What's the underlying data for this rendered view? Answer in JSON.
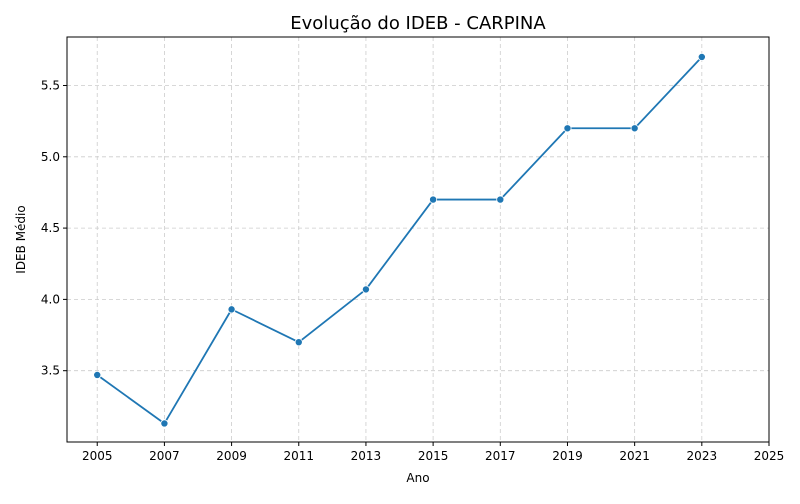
{
  "chart_data": {
    "type": "line",
    "title": "Evolução do IDEB - CARPINA",
    "xlabel": "Ano",
    "ylabel": "IDEB Médio",
    "x": [
      2005,
      2007,
      2009,
      2011,
      2013,
      2015,
      2017,
      2019,
      2021,
      2023
    ],
    "series": [
      {
        "values": [
          3.47,
          3.13,
          3.93,
          3.7,
          4.07,
          4.7,
          4.7,
          5.2,
          5.2,
          5.7
        ]
      }
    ],
    "xticks": [
      "2005",
      "2007",
      "2009",
      "2011",
      "2013",
      "2015",
      "2017",
      "2019",
      "2021",
      "2023",
      "2025"
    ],
    "yticks": [
      "3.5",
      "4.0",
      "4.5",
      "5.0",
      "5.5"
    ],
    "xlim": [
      2004.1,
      2025
    ],
    "ylim": [
      3.0,
      5.84
    ],
    "grid": true,
    "markers": true,
    "line_color": "#1f77b4",
    "grid_color": "#cccccc"
  }
}
